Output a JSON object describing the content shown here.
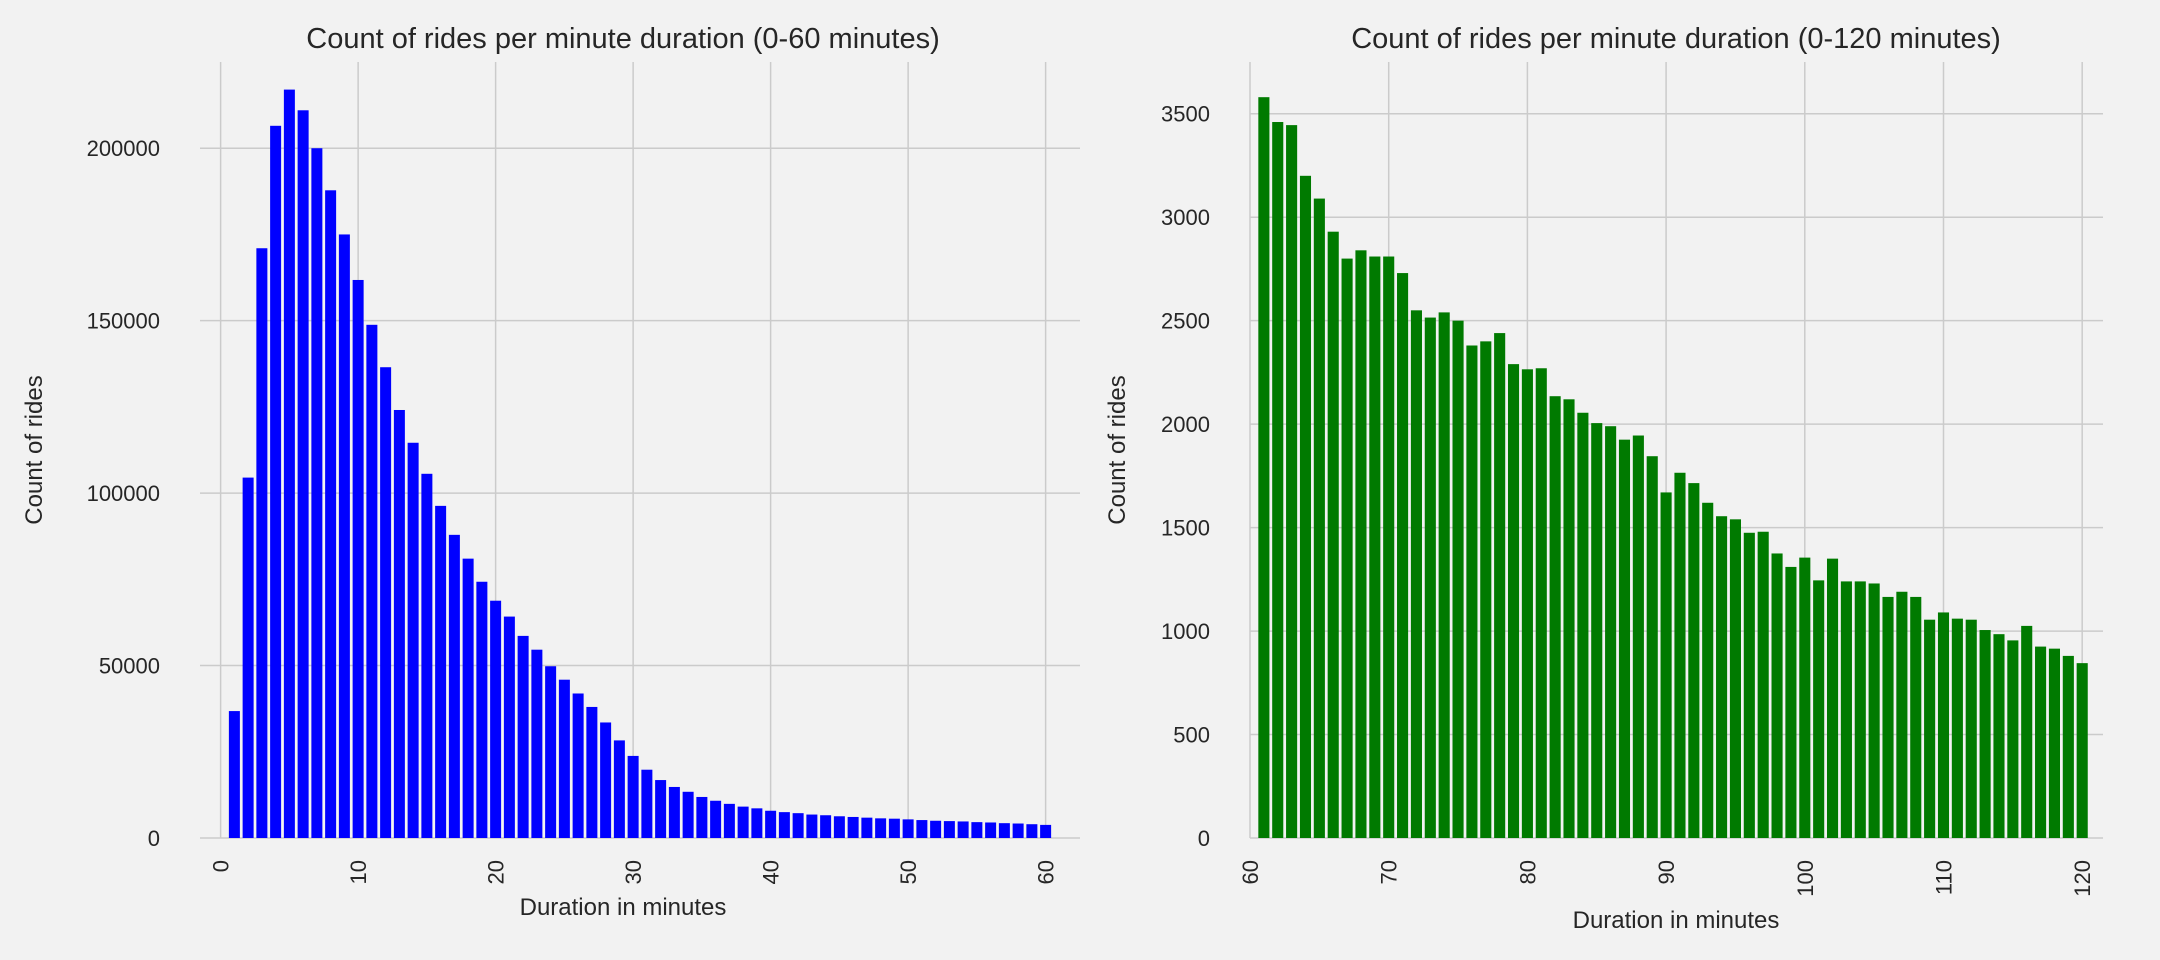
{
  "chart_data": [
    {
      "type": "bar",
      "title": "Count of rides per minute duration (0-60 minutes)",
      "xlabel": "Duration in minutes",
      "ylabel": "Count of rides",
      "color": "#0000ff",
      "xlim": [
        -1.5,
        62.5
      ],
      "ylim": [
        0,
        225000
      ],
      "xticks": [
        0,
        10,
        20,
        30,
        40,
        50,
        60
      ],
      "yticks": [
        0,
        50000,
        100000,
        150000,
        200000
      ],
      "grid": true,
      "legend": "none",
      "x": [
        1,
        2,
        3,
        4,
        5,
        6,
        7,
        8,
        9,
        10,
        11,
        12,
        13,
        14,
        15,
        16,
        17,
        18,
        19,
        20,
        21,
        22,
        23,
        24,
        25,
        26,
        27,
        28,
        29,
        30,
        31,
        32,
        33,
        34,
        35,
        36,
        37,
        38,
        39,
        40,
        41,
        42,
        43,
        44,
        45,
        46,
        47,
        48,
        49,
        50,
        51,
        52,
        53,
        54,
        55,
        56,
        57,
        58,
        59,
        60
      ],
      "values": [
        36800,
        104500,
        171000,
        206500,
        217000,
        211000,
        200000,
        187800,
        175000,
        161800,
        148800,
        136500,
        124100,
        114600,
        105600,
        96300,
        87900,
        81000,
        74300,
        68800,
        64200,
        58600,
        54600,
        49800,
        45900,
        41900,
        38000,
        33500,
        28300,
        23800,
        19800,
        16800,
        14800,
        13400,
        11900,
        10800,
        9900,
        9100,
        8600,
        7900,
        7500,
        7200,
        6800,
        6600,
        6300,
        6100,
        5900,
        5700,
        5600,
        5400,
        5200,
        5000,
        4900,
        4800,
        4600,
        4500,
        4300,
        4200,
        4000,
        3800
      ]
    },
    {
      "type": "bar",
      "title": "Count of rides per minute duration (0-120 minutes)",
      "xlabel": "Duration in minutes",
      "ylabel": "Count of rides",
      "color": "#007a00",
      "xlim": [
        60,
        121.5
      ],
      "ylim": [
        0,
        3750
      ],
      "xticks": [
        60,
        70,
        80,
        90,
        100,
        110,
        120
      ],
      "yticks": [
        0,
        500,
        1000,
        1500,
        2000,
        2500,
        3000,
        3500
      ],
      "grid": true,
      "legend": "none",
      "x": [
        61,
        62,
        63,
        64,
        65,
        66,
        67,
        68,
        69,
        70,
        71,
        72,
        73,
        74,
        75,
        76,
        77,
        78,
        79,
        80,
        81,
        82,
        83,
        84,
        85,
        86,
        87,
        88,
        89,
        90,
        91,
        92,
        93,
        94,
        95,
        96,
        97,
        98,
        99,
        100,
        101,
        102,
        103,
        104,
        105,
        106,
        107,
        108,
        109,
        110,
        111,
        112,
        113,
        114,
        115,
        116,
        117,
        118,
        119,
        120
      ],
      "values": [
        3580,
        3460,
        3445,
        3200,
        3090,
        2930,
        2800,
        2840,
        2810,
        2810,
        2730,
        2550,
        2515,
        2540,
        2500,
        2380,
        2400,
        2440,
        2290,
        2265,
        2270,
        2135,
        2120,
        2055,
        2005,
        1990,
        1925,
        1945,
        1845,
        1670,
        1765,
        1715,
        1620,
        1555,
        1540,
        1475,
        1480,
        1375,
        1310,
        1355,
        1245,
        1350,
        1240,
        1240,
        1230,
        1165,
        1190,
        1165,
        1055,
        1090,
        1060,
        1055,
        1005,
        985,
        955,
        1025,
        925,
        915,
        880,
        845
      ]
    }
  ]
}
